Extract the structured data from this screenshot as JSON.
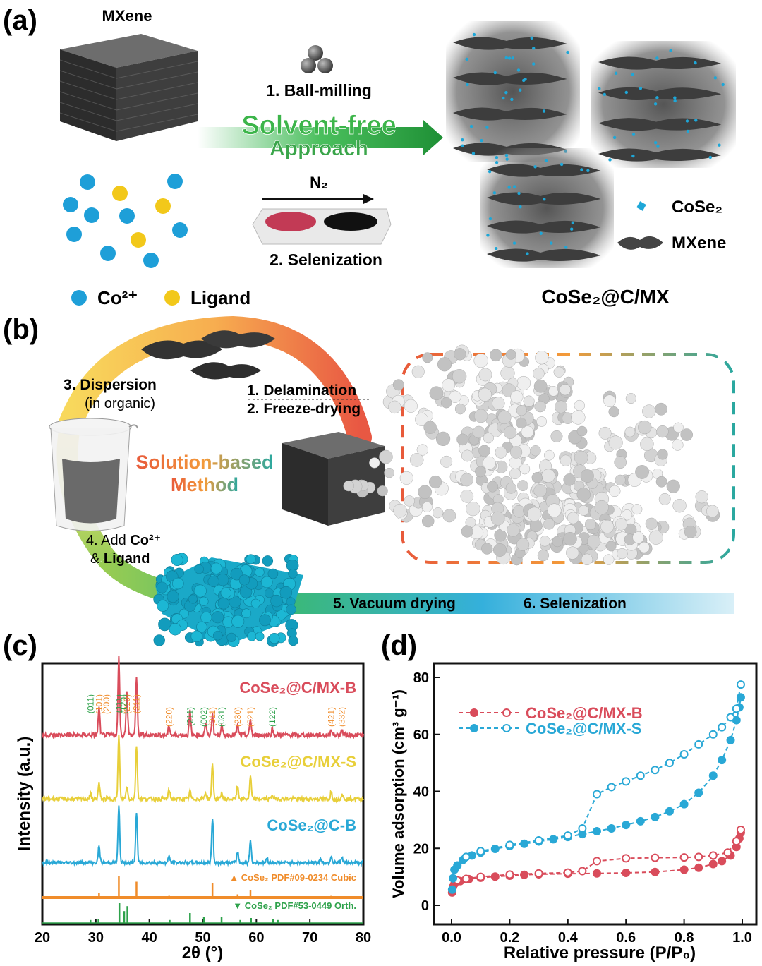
{
  "panels": {
    "a": {
      "letter": "(a)",
      "mxene_label": "MXene",
      "step1": "1. Ball-milling",
      "approach_line1": "Solvent-free",
      "approach_line2": "Approach",
      "n2_label": "N₂",
      "step2": "2. Selenization",
      "legend_co": "Co²⁺",
      "legend_ligand": "Ligand",
      "legend_cose2": "CoSe₂",
      "legend_mxene": "MXene",
      "product": "CoSe₂@C/MX"
    },
    "b": {
      "letter": "(b)",
      "step1": "1. Delamination",
      "step2": "2. Freeze-drying",
      "step3": "3. Dispersion",
      "step3_sub": "(in organic)",
      "step4a": "4. Add ",
      "step4b": "Co²⁺",
      "step4c": "& ",
      "step4d": "Ligand",
      "method1": "Solution-based",
      "method2": "Method",
      "step5": "5. Vacuum drying",
      "step6": "6. Selenization"
    }
  },
  "chart_data": [
    {
      "panel": "(c)",
      "type": "line",
      "xlabel": "2θ (°)",
      "ylabel": "Intensity (a.u.)",
      "xlim": [
        20,
        80
      ],
      "xticks": [
        20,
        30,
        40,
        50,
        60,
        70,
        80
      ],
      "series": [
        {
          "name": "CoSe₂@C/MX-B",
          "color": "#d94c5b",
          "peaks": [
            [
              30.6,
              0.35
            ],
            [
              34.3,
              1.0
            ],
            [
              35.8,
              0.55
            ],
            [
              37.6,
              0.75
            ],
            [
              43.7,
              0.12
            ],
            [
              47.6,
              0.3
            ],
            [
              50.5,
              0.15
            ],
            [
              51.8,
              0.28
            ],
            [
              53.5,
              0.12
            ],
            [
              56.5,
              0.12
            ],
            [
              58.9,
              0.2
            ],
            [
              63.0,
              0.08
            ],
            [
              74.0,
              0.08
            ],
            [
              76.0,
              0.07
            ]
          ],
          "hkl": [
            "(011)",
            "(101)",
            "(200)",
            "(111)",
            "(210)",
            "(120)",
            "(211)",
            "(220)",
            "(211)",
            "(002)",
            "(311)",
            "(031)",
            "(230)",
            "(321)",
            "(122)",
            "(421)",
            "(332)"
          ]
        },
        {
          "name": "CoSe₂@C/MX-S",
          "color": "#e8cf3a",
          "peaks": [
            [
              29.0,
              0.08
            ],
            [
              30.6,
              0.25
            ],
            [
              34.3,
              1.0
            ],
            [
              35.8,
              0.2
            ],
            [
              37.6,
              0.85
            ],
            [
              43.7,
              0.15
            ],
            [
              47.6,
              0.12
            ],
            [
              50.5,
              0.1
            ],
            [
              51.8,
              0.55
            ],
            [
              53.5,
              0.1
            ],
            [
              56.5,
              0.2
            ],
            [
              58.9,
              0.35
            ],
            [
              63.0,
              0.07
            ],
            [
              74.0,
              0.12
            ],
            [
              76.0,
              0.08
            ]
          ]
        },
        {
          "name": "CoSe₂@C-B",
          "color": "#29a8d6",
          "peaks": [
            [
              30.6,
              0.3
            ],
            [
              34.3,
              1.0
            ],
            [
              37.6,
              0.9
            ],
            [
              43.7,
              0.12
            ],
            [
              51.8,
              0.8
            ],
            [
              56.5,
              0.2
            ],
            [
              58.9,
              0.4
            ],
            [
              62.0,
              0.08
            ],
            [
              72.0,
              0.08
            ],
            [
              74.0,
              0.12
            ],
            [
              76.0,
              0.08
            ]
          ]
        }
      ],
      "references": [
        {
          "name": "CoSe₂ PDF#09-0234 Cubic",
          "color": "#f08c2a",
          "lines": [
            [
              30.6,
              0.2
            ],
            [
              34.3,
              1.0
            ],
            [
              37.6,
              0.75
            ],
            [
              43.7,
              0.08
            ],
            [
              51.8,
              0.7
            ],
            [
              56.5,
              0.15
            ],
            [
              58.9,
              0.35
            ],
            [
              62.0,
              0.05
            ],
            [
              74.0,
              0.08
            ],
            [
              76.0,
              0.05
            ]
          ]
        },
        {
          "name": "CoSe₂ PDF#53-0449 Orth.",
          "color": "#2ea24b",
          "lines": [
            [
              29.0,
              0.15
            ],
            [
              30.5,
              0.2
            ],
            [
              34.4,
              1.0
            ],
            [
              35.3,
              0.6
            ],
            [
              35.9,
              0.85
            ],
            [
              43.8,
              0.15
            ],
            [
              47.6,
              0.5
            ],
            [
              50.2,
              0.3
            ],
            [
              53.5,
              0.3
            ],
            [
              57.0,
              0.15
            ],
            [
              59.0,
              0.25
            ],
            [
              63.1,
              0.2
            ],
            [
              64.0,
              0.15
            ]
          ]
        }
      ]
    },
    {
      "panel": "(d)",
      "type": "scatter",
      "xlabel": "Relative pressure (P/P₀)",
      "ylabel": "Volume adsorption (cm³ g⁻¹)",
      "xlim": [
        0.0,
        1.0
      ],
      "ylim": [
        0,
        80
      ],
      "xticks": [
        "0.0",
        "0.2",
        "0.4",
        "0.6",
        "0.8",
        "1.0"
      ],
      "yticks": [
        "0",
        "20",
        "40",
        "60",
        "80"
      ],
      "series": [
        {
          "name": "CoSe₂@C/MX-B",
          "color": "#d94c5b",
          "adsorption": [
            [
              0.002,
              4.5
            ],
            [
              0.005,
              6.5
            ],
            [
              0.01,
              7.5
            ],
            [
              0.03,
              8.5
            ],
            [
              0.06,
              9.2
            ],
            [
              0.1,
              9.7
            ],
            [
              0.15,
              10.1
            ],
            [
              0.2,
              10.4
            ],
            [
              0.25,
              10.7
            ],
            [
              0.3,
              10.9
            ],
            [
              0.4,
              11.1
            ],
            [
              0.5,
              11.2
            ],
            [
              0.6,
              11.4
            ],
            [
              0.7,
              11.7
            ],
            [
              0.8,
              12.5
            ],
            [
              0.85,
              13.2
            ],
            [
              0.9,
              14.5
            ],
            [
              0.93,
              15.5
            ],
            [
              0.96,
              17.5
            ],
            [
              0.98,
              20.5
            ],
            [
              0.99,
              23.5
            ],
            [
              0.995,
              25.5
            ]
          ],
          "desorption": [
            [
              0.995,
              26.5
            ],
            [
              0.98,
              22.5
            ],
            [
              0.95,
              18.5
            ],
            [
              0.9,
              17.5
            ],
            [
              0.85,
              17.0
            ],
            [
              0.8,
              16.8
            ],
            [
              0.7,
              16.7
            ],
            [
              0.6,
              16.5
            ],
            [
              0.5,
              15.5
            ],
            [
              0.45,
              12.0
            ],
            [
              0.4,
              11.5
            ],
            [
              0.3,
              11.2
            ],
            [
              0.2,
              10.8
            ],
            [
              0.1,
              10.0
            ],
            [
              0.05,
              9.3
            ],
            [
              0.02,
              8.8
            ]
          ]
        },
        {
          "name": "CoSe₂@C/MX-S",
          "color": "#29a8d6",
          "adsorption": [
            [
              0.002,
              5.5
            ],
            [
              0.005,
              9.5
            ],
            [
              0.01,
              12.5
            ],
            [
              0.02,
              14.0
            ],
            [
              0.04,
              16.0
            ],
            [
              0.07,
              17.5
            ],
            [
              0.1,
              18.5
            ],
            [
              0.15,
              19.8
            ],
            [
              0.2,
              20.8
            ],
            [
              0.25,
              21.6
            ],
            [
              0.3,
              22.4
            ],
            [
              0.35,
              23.2
            ],
            [
              0.4,
              24.0
            ],
            [
              0.45,
              25.0
            ],
            [
              0.5,
              26.0
            ],
            [
              0.55,
              27.0
            ],
            [
              0.6,
              28.2
            ],
            [
              0.65,
              29.5
            ],
            [
              0.7,
              31.0
            ],
            [
              0.75,
              33.0
            ],
            [
              0.8,
              35.5
            ],
            [
              0.85,
              39.5
            ],
            [
              0.9,
              45.5
            ],
            [
              0.93,
              51.0
            ],
            [
              0.96,
              58.0
            ],
            [
              0.98,
              65.0
            ],
            [
              0.99,
              69.5
            ],
            [
              0.995,
              73.0
            ]
          ],
          "desorption": [
            [
              0.995,
              77.5
            ],
            [
              0.98,
              69.0
            ],
            [
              0.96,
              66.0
            ],
            [
              0.93,
              62.5
            ],
            [
              0.9,
              60.0
            ],
            [
              0.85,
              56.5
            ],
            [
              0.8,
              53.0
            ],
            [
              0.75,
              50.0
            ],
            [
              0.7,
              47.5
            ],
            [
              0.65,
              45.5
            ],
            [
              0.6,
              43.5
            ],
            [
              0.55,
              41.5
            ],
            [
              0.5,
              39.0
            ],
            [
              0.45,
              27.0
            ],
            [
              0.4,
              24.5
            ],
            [
              0.3,
              22.8
            ],
            [
              0.2,
              21.2
            ],
            [
              0.1,
              19.0
            ],
            [
              0.05,
              17.0
            ]
          ]
        }
      ]
    }
  ],
  "colors": {
    "red": "#d94c5b",
    "yellow": "#e8cf3a",
    "blue": "#29a8d6",
    "orange": "#f08c2a",
    "green": "#2ea24b",
    "co_ion": "#1e9fd8",
    "ligand": "#f2c81a"
  }
}
